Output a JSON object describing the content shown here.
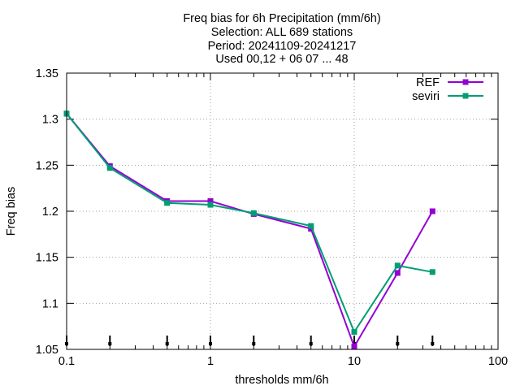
{
  "chart_data": {
    "type": "line",
    "title_lines": [
      "Freq bias  for 6h Precipitation (mm/6h)",
      "Selection: ALL    689 stations",
      "Period: 20241109-20241217",
      "Used 00,12 + 06 07 ... 48"
    ],
    "xlabel": "thresholds mm/6h",
    "ylabel": "Freq bias",
    "x_scale": "log",
    "xlim": [
      0.1,
      100
    ],
    "ylim": [
      1.05,
      1.35
    ],
    "x_ticks": [
      0.1,
      1,
      10,
      100
    ],
    "x_tick_labels": [
      "0.1",
      "1",
      "10",
      "100"
    ],
    "y_ticks": [
      1.05,
      1.1,
      1.15,
      1.2,
      1.25,
      1.3,
      1.35
    ],
    "y_tick_labels": [
      "1.05",
      "1.1",
      "1.15",
      "1.2",
      "1.25",
      "1.3",
      "1.35"
    ],
    "grid": true,
    "legend_position": "top-right",
    "x": [
      0.1,
      0.2,
      0.5,
      1,
      2,
      5,
      10,
      20,
      35
    ],
    "series": [
      {
        "name": "REF",
        "color": "#9400d3",
        "values": [
          1.306,
          1.249,
          1.211,
          1.211,
          1.197,
          1.181,
          1.053,
          1.133,
          1.2
        ]
      },
      {
        "name": "seviri",
        "color": "#009e73",
        "values": [
          1.306,
          1.247,
          1.209,
          1.207,
          1.198,
          1.184,
          1.069,
          1.141,
          1.134
        ]
      }
    ],
    "event_markers_x": [
      0.1,
      0.2,
      0.5,
      1,
      2,
      5,
      10,
      20,
      35
    ]
  }
}
